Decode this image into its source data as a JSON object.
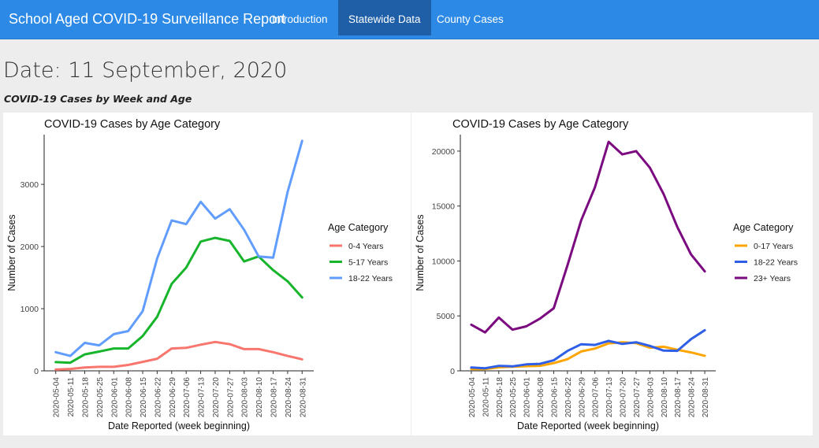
{
  "navbar": {
    "brand": "School Aged COVID-19 Surveillance Report",
    "items": [
      {
        "label": "Introduction",
        "active": false
      },
      {
        "label": "Statewide Data",
        "active": true
      },
      {
        "label": "County Cases",
        "active": false
      }
    ]
  },
  "page": {
    "date_heading": "Date: 11 September, 2020",
    "subheading": "COVID-19 Cases by Week and Age"
  },
  "chart_data": [
    {
      "type": "line",
      "title": "COVID-19 Cases by Age Category",
      "xlabel": "Date Reported (week beginning)",
      "ylabel": "Number of Cases",
      "ylim": [
        0,
        3800
      ],
      "yticks": [
        0,
        1000,
        2000,
        3000
      ],
      "legend_title": "Age Category",
      "legend_position": "right",
      "grid": false,
      "x": [
        "2020-05-04",
        "2020-05-11",
        "2020-05-18",
        "2020-05-25",
        "2020-06-01",
        "2020-06-08",
        "2020-06-15",
        "2020-06-22",
        "2020-06-29",
        "2020-07-06",
        "2020-07-13",
        "2020-07-20",
        "2020-07-27",
        "2020-08-03",
        "2020-08-10",
        "2020-08-17",
        "2020-08-24",
        "2020-08-31"
      ],
      "series": [
        {
          "name": "0-4 Years",
          "color": "#f8766d",
          "values": [
            20,
            30,
            55,
            65,
            65,
            95,
            145,
            195,
            360,
            370,
            420,
            465,
            430,
            350,
            350,
            300,
            240,
            185
          ]
        },
        {
          "name": "5-17 Years",
          "color": "#17b52c",
          "values": [
            140,
            130,
            265,
            310,
            360,
            360,
            560,
            870,
            1400,
            1660,
            2080,
            2140,
            2090,
            1760,
            1840,
            1620,
            1440,
            1180
          ]
        },
        {
          "name": "18-22 Years",
          "color": "#619cff",
          "values": [
            300,
            240,
            450,
            410,
            590,
            640,
            960,
            1810,
            2420,
            2360,
            2720,
            2450,
            2600,
            2270,
            1840,
            1820,
            2880,
            3700
          ]
        }
      ]
    },
    {
      "type": "line",
      "title": "COVID-19 Cases by Age Category",
      "xlabel": "Date Reported (week beginning)",
      "ylabel": "Number of Cases",
      "ylim": [
        0,
        21500
      ],
      "yticks": [
        0,
        5000,
        10000,
        15000,
        20000
      ],
      "legend_title": "Age Category",
      "legend_position": "right",
      "grid": false,
      "x": [
        "2020-05-04",
        "2020-05-11",
        "2020-05-18",
        "2020-05-25",
        "2020-06-01",
        "2020-06-08",
        "2020-06-15",
        "2020-06-22",
        "2020-06-29",
        "2020-07-06",
        "2020-07-13",
        "2020-07-20",
        "2020-07-27",
        "2020-08-03",
        "2020-08-10",
        "2020-08-17",
        "2020-08-24",
        "2020-08-31"
      ],
      "series": [
        {
          "name": "0-17 Years",
          "color": "#ffa500",
          "values": [
            160,
            160,
            320,
            380,
            420,
            460,
            700,
            1060,
            1760,
            2030,
            2500,
            2600,
            2520,
            2110,
            2190,
            1920,
            1680,
            1370
          ]
        },
        {
          "name": "18-22 Years",
          "color": "#2e5fe6",
          "values": [
            300,
            240,
            450,
            410,
            590,
            640,
            960,
            1810,
            2420,
            2360,
            2720,
            2450,
            2600,
            2270,
            1840,
            1820,
            2880,
            3700
          ]
        },
        {
          "name": "23+ Years",
          "color": "#7b0a80",
          "values": [
            4200,
            3500,
            4850,
            3750,
            4050,
            4750,
            5700,
            9600,
            13700,
            16700,
            20850,
            19700,
            20000,
            18500,
            16100,
            13100,
            10600,
            9050
          ]
        }
      ]
    }
  ]
}
